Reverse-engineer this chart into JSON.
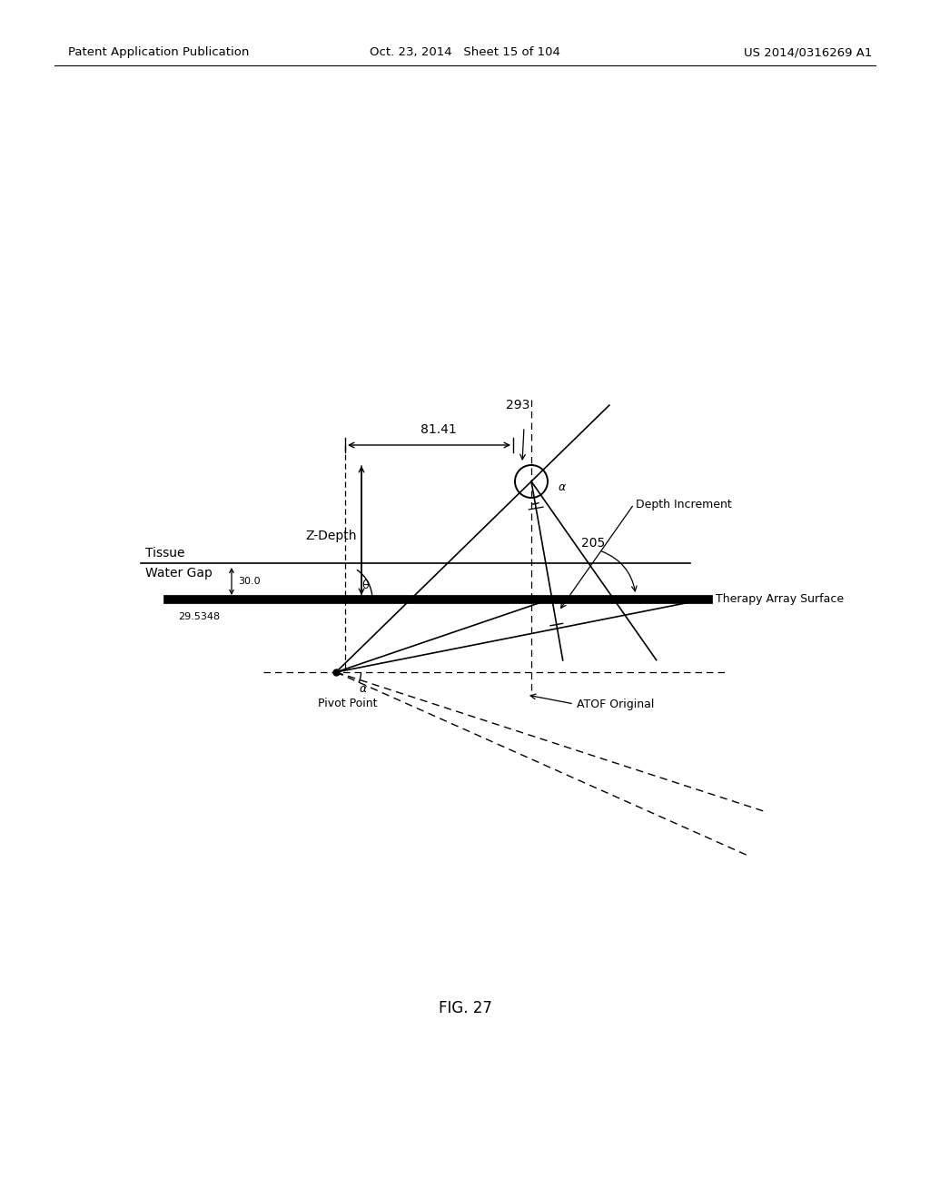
{
  "header_left": "Patent Application Publication",
  "header_center": "Oct. 23, 2014   Sheet 15 of 104",
  "header_right": "US 2014/0316269 A1",
  "fig_label": "FIG. 27",
  "bg_color": "#ffffff",
  "label_293": "293",
  "label_81_41": "81.41",
  "label_zdepth": "Z-Depth",
  "label_tissue": "Tissue",
  "label_watergap": "Water Gap",
  "label_30": "30.0",
  "label_29_53": "29.5348",
  "label_205": "205",
  "label_therapy": "Therapy Array Surface",
  "label_depth_inc": "Depth Increment",
  "label_pivot": "Pivot Point",
  "label_atof": "ATOF Original",
  "label_theta": "θ",
  "label_alpha": "α"
}
